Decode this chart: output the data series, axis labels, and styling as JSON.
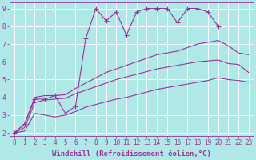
{
  "xlabel": "Windchill (Refroidissement éolien,°C)",
  "background_color": "#b0e8e8",
  "line_color": "#993399",
  "grid_color": "#ffffff",
  "xlim_min": -0.5,
  "xlim_max": 23.5,
  "ylim_min": 1.85,
  "ylim_max": 9.35,
  "xticks": [
    0,
    1,
    2,
    3,
    4,
    5,
    6,
    7,
    8,
    9,
    10,
    11,
    12,
    13,
    14,
    15,
    16,
    17,
    18,
    19,
    20,
    21,
    22,
    23
  ],
  "yticks": [
    2,
    3,
    4,
    5,
    6,
    7,
    8,
    9
  ],
  "series": [
    {
      "x": [
        0,
        1,
        2,
        3,
        4,
        5,
        6,
        7,
        8,
        9,
        10,
        11,
        12,
        13,
        14,
        15,
        16,
        17,
        18,
        19,
        20,
        21,
        22,
        23
      ],
      "y": [
        2.0,
        2.5,
        3.9,
        3.9,
        4.1,
        3.1,
        3.5,
        7.3,
        9.0,
        8.3,
        8.8,
        7.5,
        8.8,
        9.0,
        9.0,
        9.0,
        8.2,
        9.0,
        9.0,
        8.8,
        8.0,
        null,
        null,
        null
      ],
      "has_markers": true
    },
    {
      "x": [
        0,
        1,
        2,
        3,
        4,
        5,
        6,
        7,
        8,
        9,
        10,
        11,
        12,
        13,
        14,
        15,
        16,
        17,
        18,
        19,
        20,
        21,
        22,
        23
      ],
      "y": [
        2.0,
        2.5,
        4.0,
        4.1,
        4.1,
        4.15,
        4.5,
        4.8,
        5.1,
        5.4,
        5.6,
        5.8,
        6.0,
        6.2,
        6.4,
        6.5,
        6.6,
        6.8,
        7.0,
        7.1,
        7.2,
        6.9,
        6.5,
        6.4
      ],
      "has_markers": false
    },
    {
      "x": [
        0,
        1,
        2,
        3,
        4,
        5,
        6,
        7,
        8,
        9,
        10,
        11,
        12,
        13,
        14,
        15,
        16,
        17,
        18,
        19,
        20,
        21,
        22,
        23
      ],
      "y": [
        2.0,
        2.3,
        3.7,
        3.85,
        3.9,
        3.95,
        4.2,
        4.4,
        4.6,
        4.8,
        5.0,
        5.15,
        5.3,
        5.45,
        5.6,
        5.7,
        5.8,
        5.9,
        6.0,
        6.05,
        6.1,
        5.9,
        5.85,
        5.4
      ],
      "has_markers": false
    },
    {
      "x": [
        0,
        1,
        2,
        3,
        4,
        5,
        6,
        7,
        8,
        9,
        10,
        11,
        12,
        13,
        14,
        15,
        16,
        17,
        18,
        19,
        20,
        21,
        22,
        23
      ],
      "y": [
        2.0,
        2.1,
        3.1,
        3.0,
        2.9,
        3.0,
        3.2,
        3.45,
        3.6,
        3.75,
        3.9,
        4.0,
        4.15,
        4.3,
        4.45,
        4.55,
        4.65,
        4.75,
        4.85,
        4.95,
        5.1,
        5.0,
        4.95,
        4.85
      ],
      "has_markers": false
    }
  ],
  "marker": "+",
  "markersize": 4,
  "linewidth": 0.8,
  "xlabel_fontsize": 6.5,
  "tick_fontsize": 5.5,
  "axis_label_color": "#993399",
  "tick_label_color": "#993399"
}
